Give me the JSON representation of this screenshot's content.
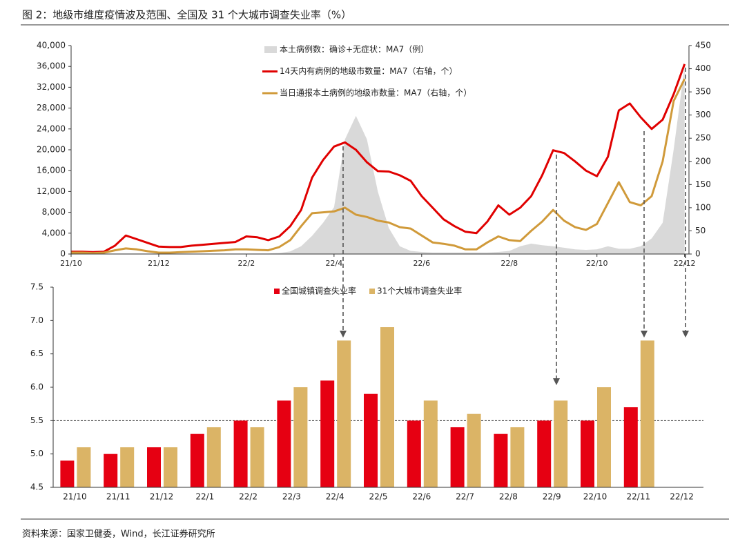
{
  "title": "图 2：地级市维度疫情波及范围、全国及 31 个大城市调查失业率（%）",
  "source": "资料来源：国家卫健委，Wind，长江证券研究所",
  "chart_data": [
    {
      "type": "combo",
      "x": [
        0,
        0.25,
        0.5,
        0.75,
        1,
        1.25,
        1.5,
        1.75,
        2,
        2.25,
        2.5,
        2.75,
        3,
        3.25,
        3.5,
        3.75,
        4,
        4.25,
        4.5,
        4.75,
        5,
        5.25,
        5.5,
        5.75,
        6,
        6.25,
        6.5,
        6.75,
        7,
        7.25,
        7.5,
        7.75,
        8,
        8.25,
        8.5,
        8.75,
        9,
        9.25,
        9.5,
        9.75,
        10,
        10.25,
        10.5,
        10.75,
        11,
        11.25,
        11.5,
        11.75,
        12,
        12.25,
        12.5,
        12.75,
        13,
        13.25,
        13.5,
        13.75,
        14
      ],
      "xlim": [
        0,
        14.1
      ],
      "xticks": [
        {
          "value": 0,
          "label": "21/10"
        },
        {
          "value": 2,
          "label": "21/12"
        },
        {
          "value": 4,
          "label": "22/2"
        },
        {
          "value": 6,
          "label": "22/4"
        },
        {
          "value": 8,
          "label": "22/6"
        },
        {
          "value": 10,
          "label": "22/8"
        },
        {
          "value": 12,
          "label": "22/10"
        },
        {
          "value": 14,
          "label": "22/12"
        }
      ],
      "ylim": [
        0,
        40000
      ],
      "yticks": [
        0,
        {
          "value": 4000,
          "label": "4,000"
        },
        {
          "value": 8000,
          "label": "8,000"
        },
        {
          "value": 12000,
          "label": "12,000"
        },
        {
          "value": 16000,
          "label": "16,000"
        },
        {
          "value": 20000,
          "label": "20,000"
        },
        {
          "value": 24000,
          "label": "24,000"
        },
        {
          "value": 28000,
          "label": "28,000"
        },
        {
          "value": 32000,
          "label": "32,000"
        },
        {
          "value": 36000,
          "label": "36,000"
        },
        {
          "value": 40000,
          "label": "40,000"
        }
      ],
      "y2lim": [
        0,
        450
      ],
      "y2ticks": [
        0,
        50,
        100,
        150,
        200,
        250,
        300,
        350,
        400,
        450
      ],
      "series": [
        {
          "name": "本土病例数：确诊+无症状：MA7（例）",
          "type": "area",
          "color": "#d9d9d9",
          "values": [
            100,
            100,
            100,
            100,
            100,
            100,
            100,
            100,
            100,
            100,
            100,
            100,
            100,
            100,
            100,
            100,
            100,
            100,
            100,
            200,
            500,
            1500,
            3500,
            6000,
            9000,
            22000,
            26500,
            22000,
            12000,
            5000,
            1500,
            600,
            400,
            300,
            300,
            300,
            300,
            300,
            300,
            400,
            600,
            1500,
            2000,
            1700,
            1500,
            1200,
            900,
            800,
            900,
            1500,
            1000,
            1000,
            1500,
            3000,
            6000,
            20000,
            36000
          ]
        },
        {
          "name": "14天内有病例的地级市数量：MA7（右轴，个）",
          "type": "line",
          "axis": "y2",
          "color": "#e00000",
          "values": [
            5,
            5,
            4,
            5,
            18,
            40,
            32,
            24,
            16,
            15,
            15,
            18,
            20,
            22,
            24,
            26,
            38,
            36,
            30,
            38,
            60,
            95,
            165,
            203,
            232,
            241,
            225,
            198,
            179,
            178,
            170,
            158,
            125,
            100,
            75,
            60,
            48,
            45,
            70,
            105,
            85,
            100,
            125,
            170,
            224,
            218,
            200,
            180,
            168,
            210,
            310,
            325,
            295,
            270,
            290,
            345,
            410
          ]
        },
        {
          "name": "当日通报本土病例的地级市数量：MA7（右轴，个）",
          "type": "line",
          "axis": "y2",
          "color": "#d09a3a",
          "values": [
            3,
            3,
            2,
            3,
            8,
            12,
            10,
            6,
            3,
            3,
            4,
            5,
            6,
            7,
            8,
            10,
            10,
            9,
            8,
            15,
            30,
            60,
            88,
            90,
            92,
            100,
            85,
            80,
            72,
            68,
            58,
            55,
            40,
            25,
            22,
            18,
            10,
            10,
            25,
            38,
            30,
            28,
            50,
            70,
            95,
            72,
            58,
            52,
            65,
            110,
            155,
            112,
            105,
            125,
            200,
            330,
            378
          ]
        }
      ]
    },
    {
      "type": "bar",
      "categories": [
        "21/10",
        "21/11",
        "21/12",
        "22/1",
        "22/2",
        "22/3",
        "22/4",
        "22/5",
        "22/6",
        "22/7",
        "22/8",
        "22/9",
        "22/10",
        "22/11",
        "22/12"
      ],
      "ylim": [
        4.5,
        7.5
      ],
      "yticks": [
        4.5,
        {
          "value": 5,
          "label": "5.0"
        },
        5.5,
        {
          "value": 6,
          "label": "6.0"
        },
        6.5,
        {
          "value": 7,
          "label": "7.0"
        },
        7.5
      ],
      "reference_line": 5.5,
      "series": [
        {
          "name": "全国城镇调查失业率",
          "color": "#e60012",
          "values": [
            4.9,
            5.0,
            5.1,
            5.3,
            5.5,
            5.8,
            6.1,
            5.9,
            5.5,
            5.4,
            5.3,
            5.5,
            5.5,
            5.7,
            null
          ]
        },
        {
          "name": "31个大城市调查失业率",
          "color": "#dbb466",
          "values": [
            5.1,
            5.1,
            5.1,
            5.4,
            5.4,
            6.0,
            6.7,
            6.9,
            5.8,
            5.6,
            5.4,
            5.8,
            6.0,
            6.7,
            null
          ]
        }
      ]
    }
  ]
}
